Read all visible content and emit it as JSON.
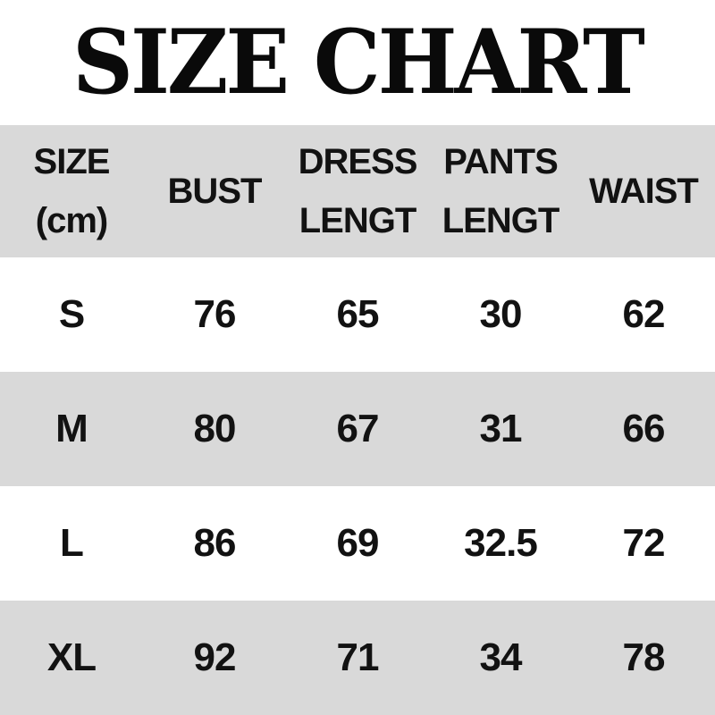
{
  "title": "SIZE CHART",
  "colors": {
    "band_gray": "#d9d9d9",
    "row_white": "#ffffff",
    "text": "#121212",
    "title_text": "#0a0a0a"
  },
  "header": {
    "cols": [
      {
        "lines": [
          "SIZE",
          "(cm)"
        ]
      },
      {
        "lines": [
          "BUST"
        ]
      },
      {
        "lines": [
          "DRESS",
          "LENGT"
        ]
      },
      {
        "lines": [
          "PANTS",
          "LENGT"
        ]
      },
      {
        "lines": [
          "WAIST"
        ]
      }
    ]
  },
  "rows": [
    {
      "cells": [
        "S",
        "76",
        "65",
        "30",
        "62"
      ]
    },
    {
      "cells": [
        "M",
        "80",
        "67",
        "31",
        "66"
      ]
    },
    {
      "cells": [
        "L",
        "86",
        "69",
        "32.5",
        "72"
      ]
    },
    {
      "cells": [
        "XL",
        "92",
        "71",
        "34",
        "78"
      ]
    }
  ],
  "chart_data": {
    "type": "table",
    "title": "SIZE CHART",
    "unit": "cm",
    "columns": [
      "SIZE (cm)",
      "BUST",
      "DRESS LENGT",
      "PANTS LENGT",
      "WAIST"
    ],
    "rows": [
      {
        "size": "S",
        "bust": 76,
        "dress_length": 65,
        "pants_length": 30,
        "waist": 62
      },
      {
        "size": "M",
        "bust": 80,
        "dress_length": 67,
        "pants_length": 31,
        "waist": 66
      },
      {
        "size": "L",
        "bust": 86,
        "dress_length": 69,
        "pants_length": 32.5,
        "waist": 72
      },
      {
        "size": "XL",
        "bust": 92,
        "dress_length": 71,
        "pants_length": 34,
        "waist": 78
      }
    ],
    "layout": {
      "row_striping": [
        "gray",
        "white",
        "gray",
        "white",
        "gray"
      ]
    }
  }
}
